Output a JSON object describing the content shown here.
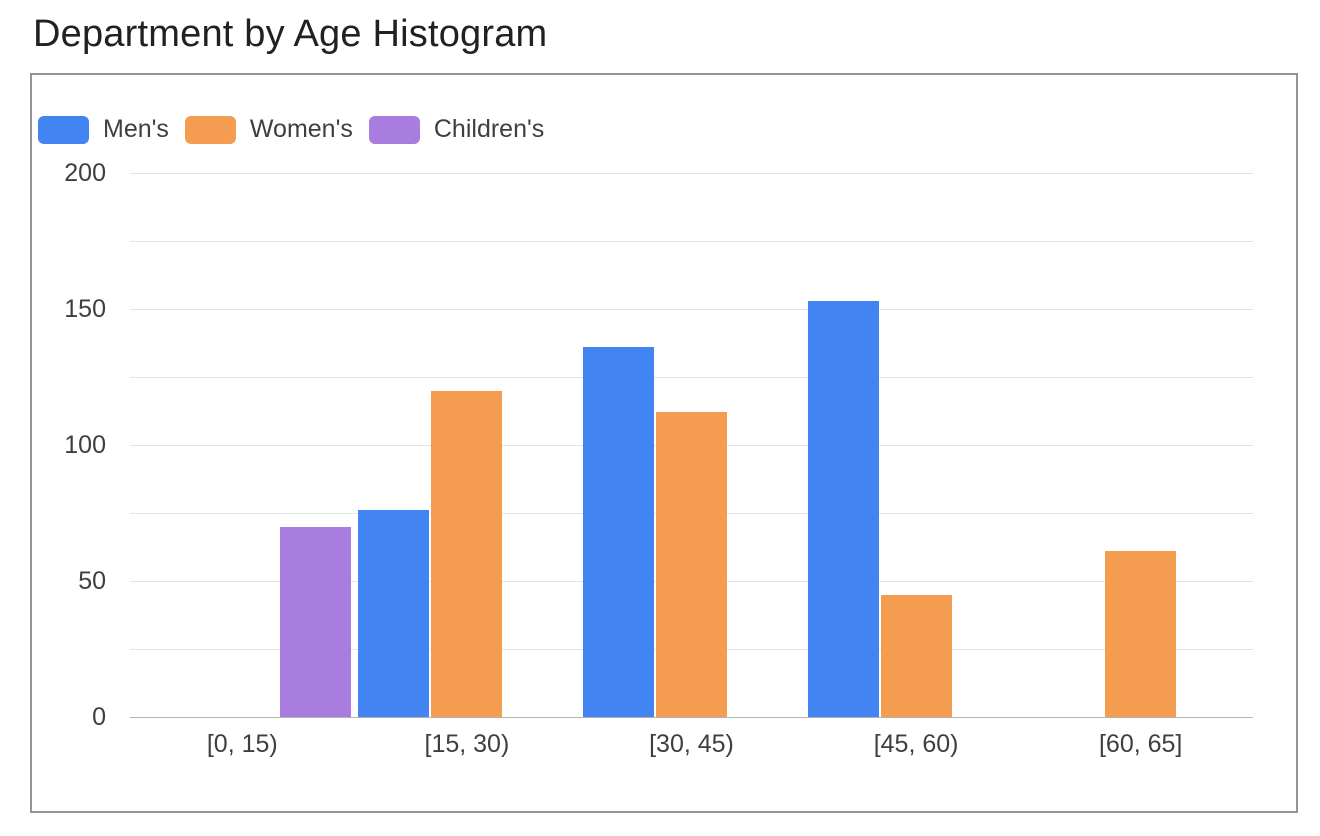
{
  "title": "Department by Age Histogram",
  "chart_data": {
    "type": "bar",
    "title": "Department by Age Histogram",
    "categories": [
      "[0, 15)",
      "[15, 30)",
      "[30, 45)",
      "[45, 60)",
      "[60, 65]"
    ],
    "series": [
      {
        "name": "Men's",
        "color": "#4284f2",
        "values": [
          null,
          76,
          136,
          153,
          null
        ]
      },
      {
        "name": "Women's",
        "color": "#f49d51",
        "values": [
          null,
          120,
          112,
          45,
          61
        ]
      },
      {
        "name": "Children's",
        "color": "#a97de0",
        "values": [
          70,
          null,
          null,
          null,
          null
        ]
      }
    ],
    "xlabel": "",
    "ylabel": "",
    "ylim": [
      0,
      200
    ],
    "yticks": [
      0,
      50,
      100,
      150,
      200
    ],
    "grid_interval": 25,
    "grid": true,
    "legend_position": "top-left"
  },
  "colors": {
    "gridline": "#e3e3e3",
    "axis_line": "#b3b3b3",
    "axis_text": "#3c4043",
    "title_text": "#212121",
    "card_border": "#949494",
    "background": "#ffffff"
  }
}
